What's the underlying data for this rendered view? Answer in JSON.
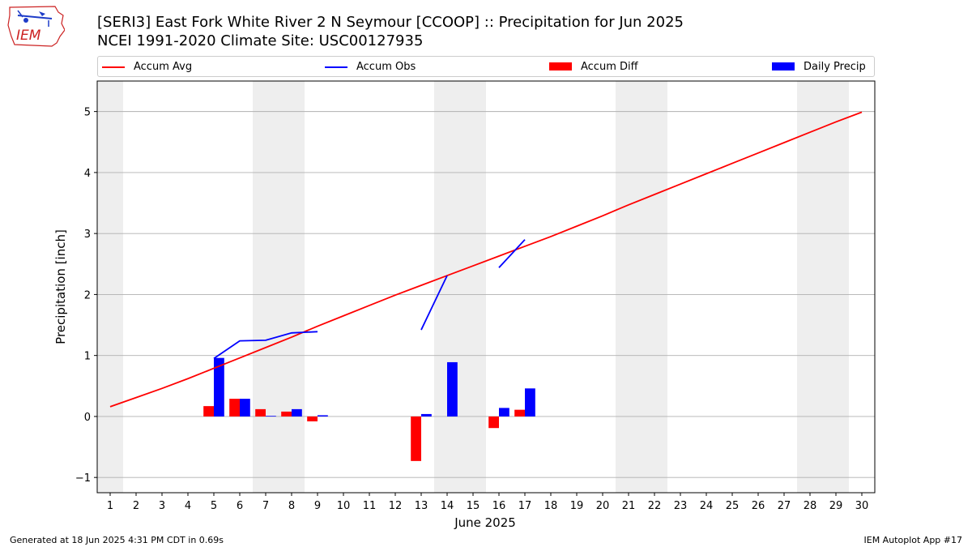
{
  "header": {
    "logo_text": "IEM",
    "title_line1": "[SERI3] East Fork White River 2 N Seymour [CCOOP] :: Precipitation for Jun 2025",
    "title_line2": "NCEI 1991-2020 Climate Site: USC00127935"
  },
  "legend": {
    "accum_avg": "Accum Avg",
    "accum_obs": "Accum Obs",
    "accum_diff": "Accum Diff",
    "daily_precip": "Daily Precip"
  },
  "footer": {
    "generated": "Generated at 18 Jun 2025 4:31 PM CDT in 0.69s",
    "app": "IEM Autoplot App #17"
  },
  "colors": {
    "accum_avg": "#ff0000",
    "accum_obs": "#0000ff",
    "accum_diff": "#ff0000",
    "daily_precip": "#0000ff",
    "weekend_shade": "#eeeeee",
    "grid": "#b0b0b0"
  },
  "chart_data": {
    "type": "bar",
    "xlabel": "June 2025",
    "ylabel": "Precipitation [inch]",
    "xlim": [
      0.5,
      30.5
    ],
    "ylim": [
      -1.25,
      5.5
    ],
    "x_ticks": [
      1,
      2,
      3,
      4,
      5,
      6,
      7,
      8,
      9,
      10,
      11,
      12,
      13,
      14,
      15,
      16,
      17,
      18,
      19,
      20,
      21,
      22,
      23,
      24,
      25,
      26,
      27,
      28,
      29,
      30
    ],
    "y_ticks": [
      -1,
      0,
      1,
      2,
      3,
      4,
      5
    ],
    "grid": "horizontal",
    "legend_placement": "top",
    "weekend_days": [
      1,
      7,
      8,
      14,
      15,
      21,
      22,
      28,
      29
    ],
    "accum_avg": {
      "name": "Accum Avg",
      "x": [
        1,
        2,
        3,
        4,
        5,
        6,
        7,
        8,
        9,
        10,
        11,
        12,
        13,
        14,
        15,
        16,
        17,
        18,
        19,
        20,
        21,
        22,
        23,
        24,
        25,
        26,
        27,
        28,
        29,
        30
      ],
      "y": [
        0.16,
        0.31,
        0.46,
        0.62,
        0.79,
        0.96,
        1.13,
        1.3,
        1.48,
        1.65,
        1.82,
        1.99,
        2.15,
        2.31,
        2.47,
        2.63,
        2.79,
        2.95,
        3.12,
        3.29,
        3.47,
        3.64,
        3.81,
        3.98,
        4.15,
        4.32,
        4.49,
        4.66,
        4.83,
        4.99
      ]
    },
    "accum_obs": {
      "name": "Accum Obs",
      "segments": [
        {
          "x": [
            5,
            6,
            7,
            8,
            9
          ],
          "y": [
            0.95,
            1.24,
            1.25,
            1.37,
            1.39
          ]
        },
        {
          "x": [
            13,
            14
          ],
          "y": [
            1.42,
            2.31
          ]
        },
        {
          "x": [
            16,
            17
          ],
          "y": [
            2.44,
            2.9
          ]
        }
      ]
    },
    "accum_diff": {
      "name": "Accum Diff",
      "x": [
        5,
        6,
        7,
        8,
        9,
        13,
        16,
        17
      ],
      "values": [
        0.17,
        0.29,
        0.12,
        0.08,
        -0.08,
        -0.73,
        -0.19,
        0.11
      ]
    },
    "daily_precip": {
      "name": "Daily Precip",
      "x": [
        5,
        6,
        7,
        8,
        9,
        13,
        14,
        16,
        17
      ],
      "values": [
        0.96,
        0.29,
        0.01,
        0.12,
        0.02,
        0.04,
        0.89,
        0.14,
        0.46
      ]
    }
  }
}
